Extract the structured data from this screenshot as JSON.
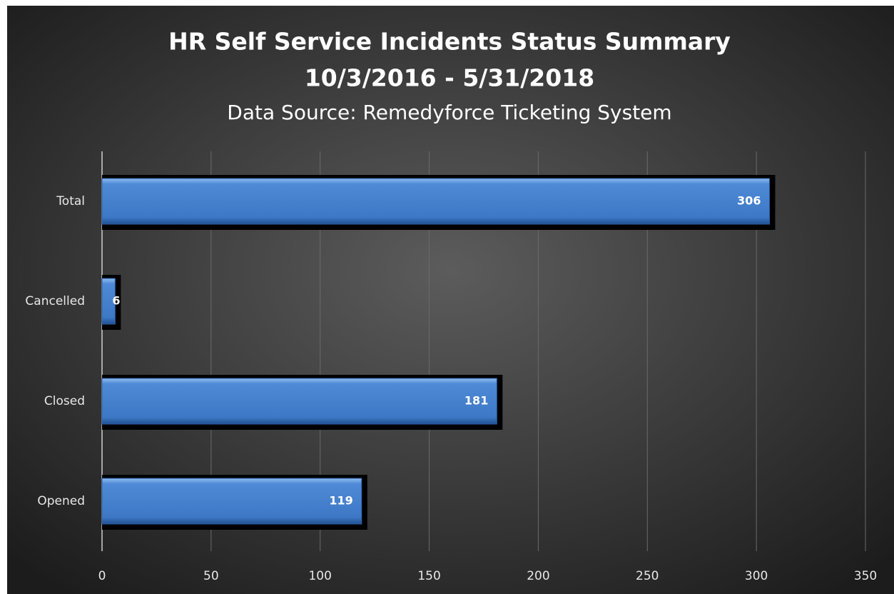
{
  "chart_data": {
    "type": "bar",
    "orientation": "horizontal",
    "title": "HR Self Service Incidents Status Summary",
    "subtitle": "10/3/2016 - 5/31/2018",
    "source": "Data Source: Remedyforce Ticketing System",
    "categories": [
      "Total",
      "Cancelled",
      "Closed",
      "Opened"
    ],
    "values": [
      306,
      6,
      181,
      119
    ],
    "color": "#4a86d0",
    "xlim": [
      0,
      350
    ],
    "xticks": [
      0,
      50,
      100,
      150,
      200,
      250,
      300,
      350
    ],
    "grid": true
  }
}
